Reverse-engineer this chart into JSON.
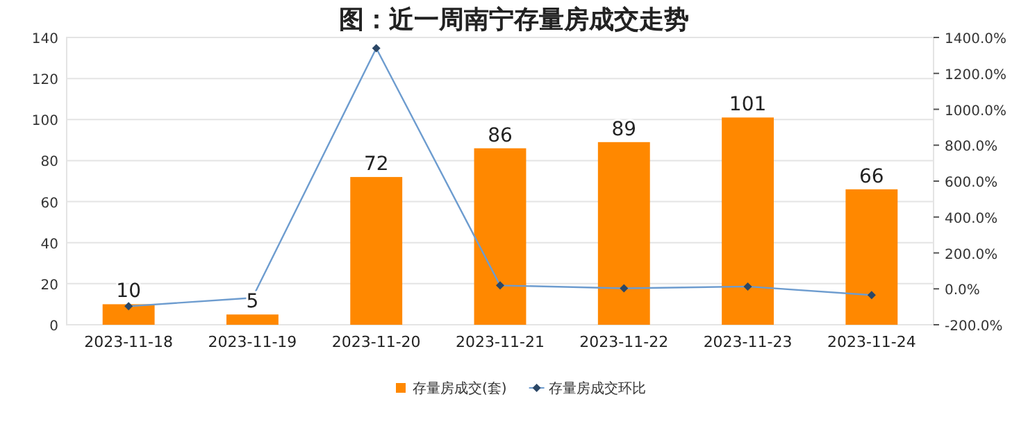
{
  "chart_data": {
    "type": "bar",
    "title": "图：近一周南宁存量房成交走势",
    "categories": [
      "2023-11-18",
      "2023-11-19",
      "2023-11-20",
      "2023-11-21",
      "2023-11-22",
      "2023-11-23",
      "2023-11-24"
    ],
    "series": [
      {
        "name": "存量房成交(套)",
        "color": "#ff8800",
        "values": [
          10,
          5,
          72,
          86,
          89,
          101,
          66
        ],
        "value_labels": [
          "10",
          "5",
          "72",
          "86",
          "89",
          "101",
          "66"
        ]
      },
      {
        "name": "存量房成交环比",
        "type": "line",
        "axis": "y2",
        "color": "#6d9ccf",
        "marker": "diamond",
        "values": [
          -97,
          -50,
          1340,
          19,
          3,
          13,
          -35
        ]
      }
    ],
    "ylim": [
      0,
      140
    ],
    "yticks": [
      0,
      20,
      40,
      60,
      80,
      100,
      120,
      140
    ],
    "y2lim": [
      -200,
      1400
    ],
    "y2ticks": [
      {
        "value": -200,
        "label": "-200.0%"
      },
      {
        "value": 0,
        "label": "0.0%"
      },
      {
        "value": 200,
        "label": "200.0%"
      },
      {
        "value": 400,
        "label": "400.0%"
      },
      {
        "value": 600,
        "label": "600.0%"
      },
      {
        "value": 800,
        "label": "800.0%"
      },
      {
        "value": 1000,
        "label": "1000.0%"
      },
      {
        "value": 1200,
        "label": "1200.0%"
      },
      {
        "value": 1400,
        "label": "1400.0%"
      }
    ],
    "grid": "y",
    "legend": "bottom"
  }
}
